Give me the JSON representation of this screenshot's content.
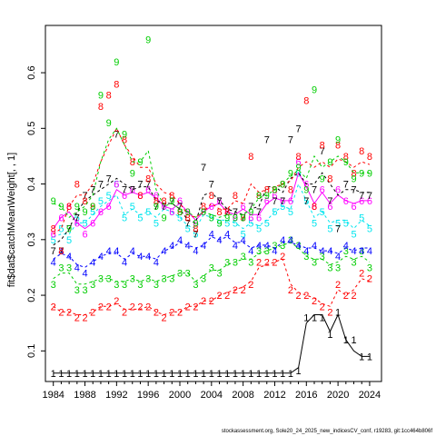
{
  "chart_data": {
    "type": "line",
    "ylabel": "fit$dat$catchMeanWeight[, , 1]",
    "xlim": [
      1983,
      2025.5
    ],
    "ylim": [
      0.045,
      0.685
    ],
    "x_ticks": [
      1984,
      1988,
      1992,
      1996,
      2000,
      2004,
      2008,
      2012,
      2016,
      2020,
      2024
    ],
    "y_ticks": [
      0.1,
      0.2,
      0.3,
      0.4,
      0.5,
      0.6
    ],
    "x": [
      1984,
      1985,
      1986,
      1987,
      1988,
      1989,
      1990,
      1991,
      1992,
      1993,
      1994,
      1995,
      1996,
      1997,
      1998,
      1999,
      2000,
      2001,
      2002,
      2003,
      2004,
      2005,
      2006,
      2007,
      2008,
      2009,
      2010,
      2011,
      2012,
      2013,
      2014,
      2015,
      2016,
      2017,
      2018,
      2019,
      2020,
      2021,
      2022,
      2023,
      2024
    ],
    "series": [
      {
        "label": "1",
        "color": "#000000",
        "solid": true,
        "obs": [
          0.06,
          0.06,
          0.06,
          0.06,
          0.06,
          0.06,
          0.06,
          0.06,
          0.06,
          0.06,
          0.06,
          0.06,
          0.06,
          0.06,
          0.06,
          0.06,
          0.06,
          0.06,
          0.06,
          0.06,
          0.06,
          0.06,
          0.06,
          0.06,
          0.06,
          0.06,
          0.06,
          0.06,
          0.06,
          0.06,
          0.06,
          0.065,
          0.16,
          0.16,
          0.16,
          0.13,
          0.17,
          0.12,
          0.12,
          0.09,
          0.09
        ],
        "fit": [
          0.06,
          0.06,
          0.06,
          0.06,
          0.06,
          0.06,
          0.06,
          0.06,
          0.06,
          0.06,
          0.06,
          0.06,
          0.06,
          0.06,
          0.06,
          0.06,
          0.06,
          0.06,
          0.06,
          0.06,
          0.06,
          0.06,
          0.06,
          0.06,
          0.06,
          0.06,
          0.06,
          0.06,
          0.06,
          0.06,
          0.06,
          0.07,
          0.15,
          0.165,
          0.165,
          0.135,
          0.165,
          0.12,
          0.1,
          0.09,
          0.09
        ]
      },
      {
        "label": "2",
        "color": "#ff0000",
        "obs": [
          0.18,
          0.17,
          0.17,
          0.16,
          0.16,
          0.17,
          0.18,
          0.18,
          0.19,
          0.17,
          0.18,
          0.18,
          0.18,
          0.17,
          0.16,
          0.17,
          0.17,
          0.18,
          0.18,
          0.19,
          0.19,
          0.2,
          0.2,
          0.21,
          0.21,
          0.22,
          0.26,
          0.26,
          0.26,
          0.27,
          0.21,
          0.2,
          0.2,
          0.19,
          0.18,
          0.17,
          0.22,
          0.2,
          0.2,
          0.24,
          0.23
        ],
        "fit": [
          0.18,
          0.17,
          0.17,
          0.165,
          0.165,
          0.17,
          0.18,
          0.18,
          0.185,
          0.175,
          0.175,
          0.175,
          0.18,
          0.17,
          0.165,
          0.17,
          0.17,
          0.18,
          0.18,
          0.19,
          0.19,
          0.2,
          0.205,
          0.21,
          0.215,
          0.225,
          0.25,
          0.255,
          0.26,
          0.265,
          0.22,
          0.205,
          0.2,
          0.195,
          0.185,
          0.18,
          0.21,
          0.2,
          0.21,
          0.23,
          0.225
        ]
      },
      {
        "label": "3",
        "color": "#00cd00",
        "obs": [
          0.22,
          0.25,
          0.25,
          0.21,
          0.21,
          0.22,
          0.23,
          0.23,
          0.22,
          0.22,
          0.23,
          0.22,
          0.23,
          0.22,
          0.23,
          0.23,
          0.24,
          0.24,
          0.22,
          0.23,
          0.25,
          0.24,
          0.26,
          0.26,
          0.27,
          0.26,
          0.28,
          0.28,
          0.29,
          0.29,
          0.3,
          0.29,
          0.27,
          0.26,
          0.27,
          0.25,
          0.25,
          0.28,
          0.26,
          0.28,
          0.25
        ],
        "fit": [
          0.23,
          0.24,
          0.24,
          0.22,
          0.22,
          0.225,
          0.23,
          0.23,
          0.225,
          0.225,
          0.23,
          0.225,
          0.23,
          0.225,
          0.23,
          0.235,
          0.24,
          0.24,
          0.225,
          0.235,
          0.245,
          0.245,
          0.255,
          0.26,
          0.265,
          0.265,
          0.275,
          0.28,
          0.285,
          0.29,
          0.295,
          0.285,
          0.27,
          0.265,
          0.265,
          0.255,
          0.26,
          0.27,
          0.265,
          0.27,
          0.26
        ]
      },
      {
        "label": "4",
        "color": "#0000ff",
        "obs": [
          0.26,
          0.28,
          0.27,
          0.25,
          0.24,
          0.26,
          0.27,
          0.28,
          0.28,
          0.26,
          0.28,
          0.27,
          0.27,
          0.26,
          0.28,
          0.29,
          0.3,
          0.29,
          0.28,
          0.29,
          0.31,
          0.3,
          0.31,
          0.29,
          0.3,
          0.28,
          0.29,
          0.29,
          0.28,
          0.3,
          0.3,
          0.29,
          0.28,
          0.29,
          0.28,
          0.28,
          0.27,
          0.29,
          0.28,
          0.28,
          0.28
        ],
        "fit": [
          0.265,
          0.275,
          0.27,
          0.255,
          0.25,
          0.26,
          0.27,
          0.275,
          0.275,
          0.265,
          0.275,
          0.27,
          0.27,
          0.265,
          0.28,
          0.285,
          0.295,
          0.29,
          0.285,
          0.29,
          0.305,
          0.3,
          0.305,
          0.295,
          0.295,
          0.285,
          0.29,
          0.29,
          0.285,
          0.295,
          0.295,
          0.29,
          0.285,
          0.285,
          0.28,
          0.28,
          0.275,
          0.285,
          0.28,
          0.285,
          0.285
        ]
      },
      {
        "label": "5",
        "color": "#00e5ee",
        "obs": [
          0.3,
          0.32,
          0.3,
          0.34,
          0.33,
          0.35,
          0.37,
          0.38,
          0.4,
          0.34,
          0.36,
          0.34,
          0.35,
          0.33,
          0.36,
          0.35,
          0.34,
          0.32,
          0.31,
          0.35,
          0.34,
          0.33,
          0.33,
          0.33,
          0.31,
          0.33,
          0.32,
          0.33,
          0.35,
          0.36,
          0.35,
          0.42,
          0.37,
          0.33,
          0.35,
          0.32,
          0.33,
          0.33,
          0.31,
          0.34,
          0.32
        ],
        "fit": [
          0.305,
          0.31,
          0.31,
          0.33,
          0.33,
          0.345,
          0.36,
          0.37,
          0.38,
          0.345,
          0.355,
          0.345,
          0.35,
          0.34,
          0.355,
          0.35,
          0.34,
          0.325,
          0.32,
          0.345,
          0.34,
          0.335,
          0.335,
          0.33,
          0.32,
          0.33,
          0.325,
          0.335,
          0.35,
          0.36,
          0.355,
          0.4,
          0.37,
          0.34,
          0.35,
          0.33,
          0.335,
          0.335,
          0.32,
          0.335,
          0.325
        ]
      },
      {
        "label": "6",
        "color": "#ff00ff",
        "solid": true,
        "obs": [
          0.31,
          0.34,
          0.36,
          0.33,
          0.31,
          0.33,
          0.35,
          0.36,
          0.4,
          0.38,
          0.39,
          0.38,
          0.39,
          0.38,
          0.36,
          0.35,
          0.37,
          0.35,
          0.33,
          0.35,
          0.36,
          0.37,
          0.35,
          0.34,
          0.36,
          0.34,
          0.34,
          0.37,
          0.38,
          0.37,
          0.37,
          0.44,
          0.4,
          0.36,
          0.39,
          0.36,
          0.39,
          0.37,
          0.36,
          0.37,
          0.37
        ],
        "fit": [
          0.32,
          0.34,
          0.35,
          0.33,
          0.32,
          0.33,
          0.35,
          0.36,
          0.39,
          0.38,
          0.385,
          0.38,
          0.385,
          0.375,
          0.36,
          0.355,
          0.365,
          0.35,
          0.335,
          0.35,
          0.36,
          0.365,
          0.35,
          0.345,
          0.355,
          0.345,
          0.345,
          0.365,
          0.375,
          0.37,
          0.37,
          0.42,
          0.395,
          0.365,
          0.385,
          0.365,
          0.38,
          0.37,
          0.365,
          0.37,
          0.37
        ]
      },
      {
        "label": "7",
        "color": "#000000",
        "obs": [
          0.28,
          0.28,
          0.32,
          0.34,
          0.38,
          0.39,
          0.4,
          0.41,
          0.49,
          0.39,
          0.39,
          0.4,
          0.4,
          0.36,
          0.36,
          0.37,
          0.36,
          0.33,
          0.31,
          0.43,
          0.4,
          0.37,
          0.35,
          0.35,
          0.34,
          0.36,
          0.35,
          0.48,
          0.37,
          0.37,
          0.48,
          0.5,
          0.37,
          0.39,
          0.46,
          0.37,
          0.32,
          0.4,
          0.39,
          0.38,
          0.38
        ],
        "fit": [
          0.29,
          0.3,
          0.32,
          0.35,
          0.37,
          0.38,
          0.39,
          0.4,
          0.41,
          0.4,
          0.39,
          0.395,
          0.395,
          0.37,
          0.365,
          0.365,
          0.355,
          0.335,
          0.33,
          0.38,
          0.385,
          0.37,
          0.355,
          0.35,
          0.345,
          0.355,
          0.36,
          0.395,
          0.395,
          0.385,
          0.41,
          0.42,
          0.4,
          0.4,
          0.42,
          0.4,
          0.38,
          0.39,
          0.39,
          0.385,
          0.385
        ]
      },
      {
        "label": "8",
        "color": "#ff0000",
        "obs": [
          0.32,
          0.28,
          0.36,
          0.4,
          0.37,
          0.36,
          0.54,
          0.56,
          0.58,
          0.48,
          0.44,
          0.38,
          0.41,
          0.37,
          0.37,
          0.38,
          0.35,
          0.34,
          0.32,
          0.36,
          0.38,
          0.35,
          0.35,
          0.38,
          0.34,
          0.45,
          0.38,
          0.39,
          0.39,
          0.4,
          0.39,
          0.45,
          0.55,
          0.36,
          0.47,
          0.41,
          0.47,
          0.45,
          0.42,
          0.46,
          0.45
        ],
        "fit": [
          0.31,
          0.32,
          0.36,
          0.38,
          0.38,
          0.4,
          0.44,
          0.47,
          0.5,
          0.47,
          0.45,
          0.43,
          0.43,
          0.4,
          0.385,
          0.38,
          0.365,
          0.345,
          0.34,
          0.35,
          0.365,
          0.355,
          0.355,
          0.37,
          0.365,
          0.4,
          0.385,
          0.39,
          0.395,
          0.4,
          0.405,
          0.43,
          0.44,
          0.43,
          0.44,
          0.43,
          0.445,
          0.44,
          0.43,
          0.44,
          0.435
        ]
      },
      {
        "label": "9",
        "color": "#00cd00",
        "obs": [
          0.37,
          0.36,
          0.32,
          0.36,
          0.35,
          0.36,
          0.56,
          0.51,
          0.62,
          0.49,
          0.42,
          0.44,
          0.66,
          0.36,
          0.34,
          0.37,
          0.35,
          0.35,
          0.33,
          0.35,
          0.34,
          0.33,
          0.34,
          0.34,
          0.34,
          0.35,
          0.38,
          0.38,
          0.39,
          0.4,
          0.42,
          0.43,
          0.39,
          0.57,
          0.41,
          0.44,
          0.48,
          0.44,
          0.41,
          0.42,
          0.42
        ],
        "fit": [
          0.365,
          0.36,
          0.34,
          0.35,
          0.36,
          0.38,
          0.44,
          0.48,
          0.5,
          0.47,
          0.44,
          0.44,
          0.46,
          0.39,
          0.36,
          0.365,
          0.355,
          0.35,
          0.34,
          0.35,
          0.345,
          0.34,
          0.345,
          0.345,
          0.345,
          0.355,
          0.375,
          0.38,
          0.39,
          0.4,
          0.415,
          0.425,
          0.41,
          0.45,
          0.43,
          0.44,
          0.45,
          0.44,
          0.42,
          0.42,
          0.42
        ]
      }
    ],
    "footer": "stockassessment.org, Sole20_24_2025_new_indicesCV_conf, r19283, git:1cc464b806f"
  }
}
